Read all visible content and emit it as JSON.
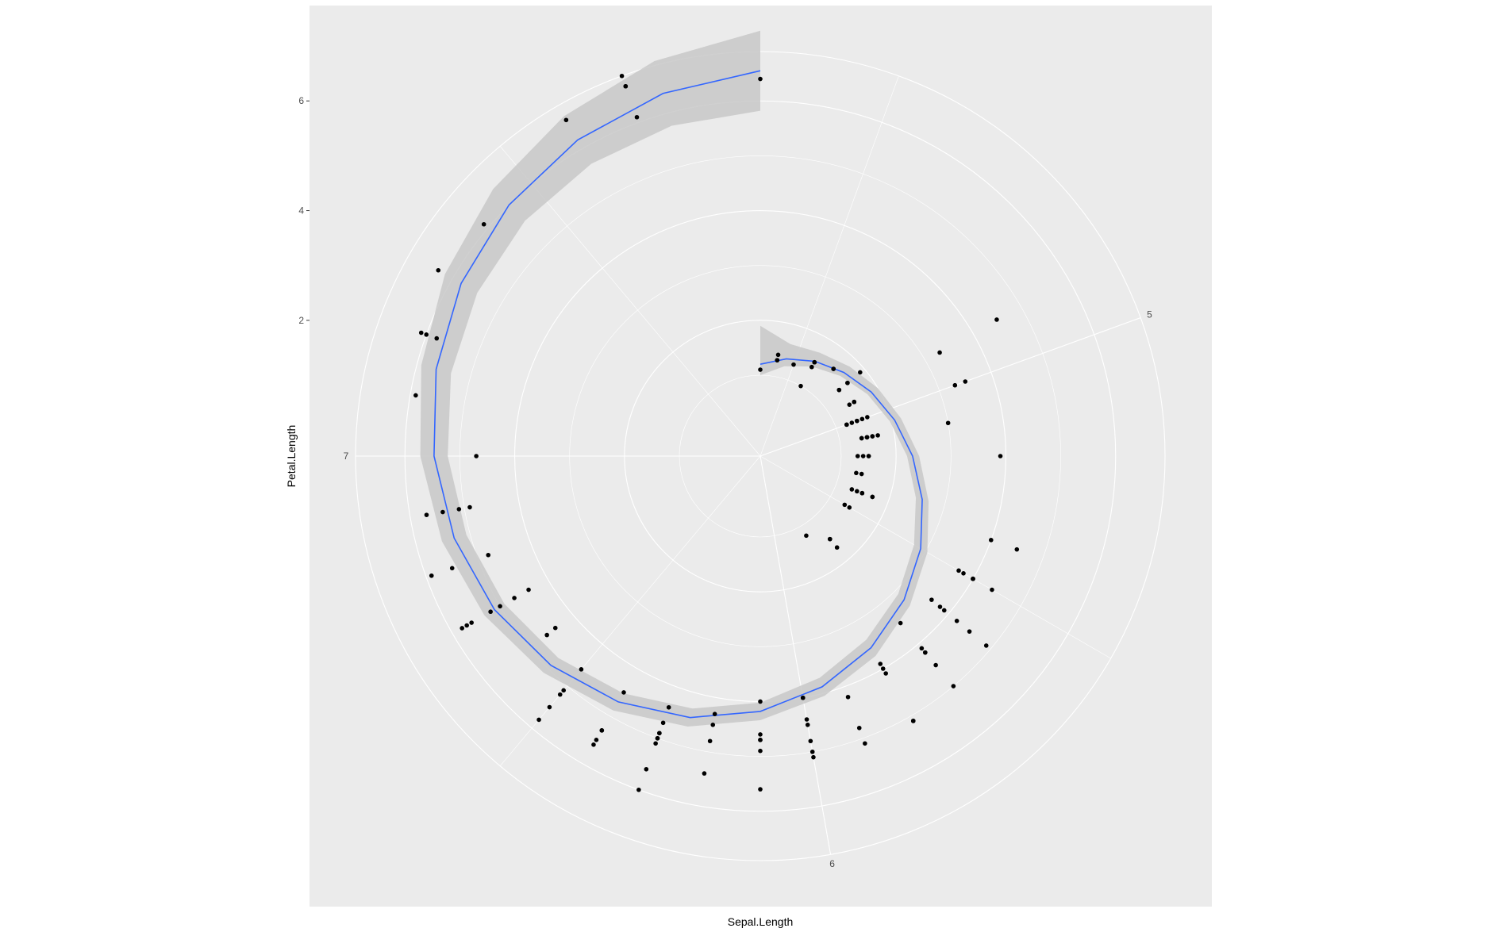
{
  "chart_data": {
    "type": "scatter",
    "coord": "polar",
    "xlabel": "Sepal.Length",
    "ylabel": "Petal.Length",
    "theta_variable": "Sepal.Length",
    "r_variable": "Petal.Length",
    "theta_range": [
      4.3,
      7.9
    ],
    "r_range": [
      1.0,
      6.9
    ],
    "theta_ticks": [
      5,
      6,
      7
    ],
    "r_ticks": [
      2,
      4,
      6
    ],
    "grid": true,
    "colors": {
      "panel": "#ebebeb",
      "grid": "#ffffff",
      "points": "#000000",
      "smooth_line": "#3366ff",
      "ribbon": "#c8c8c8"
    },
    "smooth": {
      "x": [
        4.3,
        4.45,
        4.6,
        4.75,
        4.9,
        5.05,
        5.2,
        5.35,
        5.5,
        5.65,
        5.8,
        5.95,
        6.1,
        6.25,
        6.4,
        6.55,
        6.7,
        6.85,
        7.0,
        7.15,
        7.3,
        7.45,
        7.6,
        7.75,
        7.9
      ],
      "y": [
        1.2,
        1.36,
        1.52,
        1.68,
        1.86,
        2.06,
        2.3,
        2.58,
        2.9,
        3.23,
        3.56,
        3.88,
        4.18,
        4.46,
        4.7,
        4.92,
        5.12,
        5.3,
        5.47,
        5.64,
        5.82,
        6.0,
        6.18,
        6.37,
        6.55
      ],
      "ymin": [
        1.0,
        1.22,
        1.41,
        1.59,
        1.78,
        1.97,
        2.2,
        2.46,
        2.76,
        3.08,
        3.39,
        3.71,
        4.02,
        4.29,
        4.52,
        4.73,
        4.91,
        5.07,
        5.22,
        5.36,
        5.48,
        5.59,
        5.68,
        5.76,
        5.82
      ],
      "ymax": [
        1.9,
        1.64,
        1.7,
        1.83,
        2.0,
        2.18,
        2.42,
        2.7,
        3.04,
        3.38,
        3.73,
        4.05,
        4.34,
        4.63,
        4.88,
        5.11,
        5.33,
        5.53,
        5.72,
        5.92,
        6.16,
        6.41,
        6.68,
        6.98,
        7.28
      ]
    },
    "points": [
      [
        4.3,
        1.1
      ],
      [
        4.4,
        1.3
      ],
      [
        4.4,
        1.4
      ],
      [
        4.4,
        1.3
      ],
      [
        4.5,
        1.3
      ],
      [
        4.6,
        1.4
      ],
      [
        4.6,
        1.0
      ],
      [
        4.6,
        1.5
      ],
      [
        4.6,
        1.5
      ],
      [
        4.7,
        1.6
      ],
      [
        4.7,
        1.6
      ],
      [
        4.8,
        1.4
      ],
      [
        4.8,
        1.6
      ],
      [
        4.8,
        1.9
      ],
      [
        4.8,
        1.6
      ],
      [
        4.8,
        1.4
      ],
      [
        4.9,
        1.5
      ],
      [
        4.9,
        1.4
      ],
      [
        4.9,
        1.5
      ],
      [
        4.9,
        3.3
      ],
      [
        4.9,
        4.5
      ],
      [
        5.0,
        1.4
      ],
      [
        5.0,
        1.5
      ],
      [
        5.0,
        1.6
      ],
      [
        5.0,
        1.2
      ],
      [
        5.0,
        1.3
      ],
      [
        5.0,
        1.4
      ],
      [
        5.0,
        1.2
      ],
      [
        5.0,
        3.5
      ],
      [
        5.0,
        3.3
      ],
      [
        5.1,
        1.5
      ],
      [
        5.1,
        1.4
      ],
      [
        5.1,
        1.7
      ],
      [
        5.1,
        1.5
      ],
      [
        5.1,
        1.4
      ],
      [
        5.1,
        3.0
      ],
      [
        5.1,
        1.6
      ],
      [
        5.1,
        1.5
      ],
      [
        5.1,
        1.6
      ],
      [
        5.2,
        1.5
      ],
      [
        5.2,
        1.4
      ],
      [
        5.2,
        1.3
      ],
      [
        5.2,
        3.9
      ],
      [
        5.2,
        1.5
      ],
      [
        5.3,
        1.4
      ],
      [
        5.3,
        1.3
      ],
      [
        5.4,
        1.3
      ],
      [
        5.4,
        1.5
      ],
      [
        5.4,
        1.7
      ],
      [
        5.4,
        1.5
      ],
      [
        5.4,
        1.4
      ],
      [
        5.4,
        1.7
      ],
      [
        5.4,
        4.5
      ],
      [
        5.4,
        4.0
      ],
      [
        5.5,
        4.0
      ],
      [
        5.5,
        4.4
      ],
      [
        5.5,
        3.8
      ],
      [
        5.5,
        4.0
      ],
      [
        5.5,
        1.4
      ],
      [
        5.5,
        3.7
      ],
      [
        5.5,
        1.3
      ],
      [
        5.5,
        4.0
      ],
      [
        5.6,
        3.6
      ],
      [
        5.6,
        3.9
      ],
      [
        5.6,
        4.2
      ],
      [
        5.6,
        3.8
      ],
      [
        5.6,
        4.5
      ],
      [
        5.6,
        4.9
      ],
      [
        5.7,
        1.5
      ],
      [
        5.7,
        1.7
      ],
      [
        5.7,
        4.5
      ],
      [
        5.7,
        3.5
      ],
      [
        5.7,
        4.2
      ],
      [
        5.7,
        4.1
      ],
      [
        5.7,
        5.0
      ],
      [
        5.7,
        1.5
      ],
      [
        5.7,
        4.2
      ],
      [
        5.8,
        4.1
      ],
      [
        5.8,
        3.9
      ],
      [
        5.8,
        4.0
      ],
      [
        5.8,
        5.1
      ],
      [
        5.8,
        1.2
      ],
      [
        5.8,
        5.1
      ],
      [
        5.8,
        5.1
      ],
      [
        5.9,
        4.8
      ],
      [
        5.9,
        4.2
      ],
      [
        5.9,
        5.1
      ],
      [
        6.0,
        4.0
      ],
      [
        6.0,
        5.0
      ],
      [
        6.0,
        4.5
      ],
      [
        6.0,
        5.1
      ],
      [
        6.0,
        4.4
      ],
      [
        6.0,
        4.8
      ],
      [
        6.0,
        4.0
      ],
      [
        6.1,
        4.7
      ],
      [
        6.1,
        4.6
      ],
      [
        6.1,
        4.7
      ],
      [
        6.1,
        4.0
      ],
      [
        6.1,
        5.6
      ],
      [
        6.1,
        4.9
      ],
      [
        6.2,
        4.5
      ],
      [
        6.2,
        4.3
      ],
      [
        6.2,
        4.8
      ],
      [
        6.2,
        5.4
      ],
      [
        6.3,
        4.9
      ],
      [
        6.3,
        4.4
      ],
      [
        6.3,
        4.7
      ],
      [
        6.3,
        6.0
      ],
      [
        6.3,
        5.6
      ],
      [
        6.3,
        5.1
      ],
      [
        6.3,
        5.0
      ],
      [
        6.3,
        4.9
      ],
      [
        6.3,
        5.0
      ],
      [
        6.4,
        4.5
      ],
      [
        6.4,
        5.3
      ],
      [
        6.4,
        5.5
      ],
      [
        6.4,
        5.3
      ],
      [
        6.4,
        5.6
      ],
      [
        6.5,
        4.6
      ],
      [
        6.5,
        5.8
      ],
      [
        6.5,
        5.5
      ],
      [
        6.5,
        5.1
      ],
      [
        6.5,
        5.2
      ],
      [
        6.6,
        4.6
      ],
      [
        6.6,
        4.4
      ],
      [
        6.7,
        4.7
      ],
      [
        6.7,
        4.4
      ],
      [
        6.7,
        5.0
      ],
      [
        6.7,
        5.8
      ],
      [
        6.7,
        5.7
      ],
      [
        6.7,
        5.6
      ],
      [
        6.7,
        5.2
      ],
      [
        6.8,
        4.8
      ],
      [
        6.8,
        5.5
      ],
      [
        6.8,
        5.9
      ],
      [
        6.9,
        4.9
      ],
      [
        6.9,
        5.4
      ],
      [
        6.9,
        5.1
      ],
      [
        6.9,
        5.7
      ],
      [
        7.0,
        4.7
      ],
      [
        7.1,
        5.9
      ],
      [
        7.2,
        6.1
      ],
      [
        7.2,
        5.8
      ],
      [
        7.2,
        6.0
      ],
      [
        7.3,
        6.3
      ],
      [
        7.4,
        6.1
      ],
      [
        7.6,
        6.6
      ],
      [
        7.7,
        6.7
      ],
      [
        7.7,
        6.9
      ],
      [
        7.7,
        6.7
      ],
      [
        7.7,
        6.1
      ],
      [
        7.9,
        6.4
      ]
    ]
  }
}
